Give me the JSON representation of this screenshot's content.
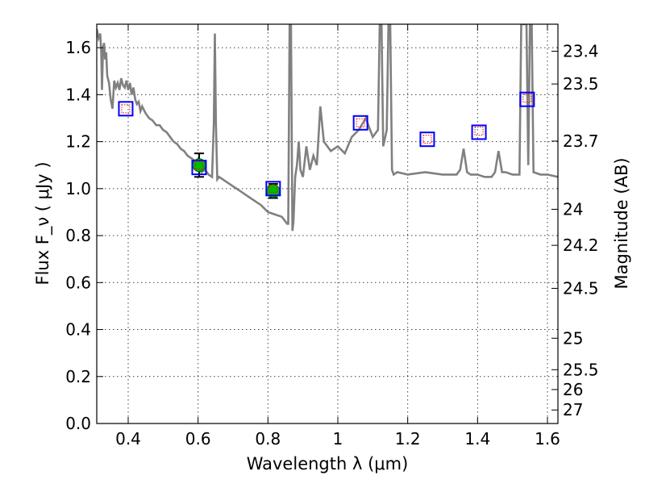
{
  "chart_data": {
    "type": "scatter",
    "xlabel": "Wavelength  λ (μm)",
    "ylabel": "Flux  F_ν  ( μJy )",
    "y2label": "Magnitude (AB)",
    "xlim": [
      0.31,
      1.63
    ],
    "ylim": [
      0.0,
      1.7
    ],
    "grid": true,
    "x_ticks": [
      {
        "value": 0.4,
        "label": "0.4"
      },
      {
        "value": 0.6,
        "label": "0.6"
      },
      {
        "value": 0.8,
        "label": "0.8"
      },
      {
        "value": 1.0,
        "label": "1"
      },
      {
        "value": 1.2,
        "label": "1.2"
      },
      {
        "value": 1.4,
        "label": "1.4"
      },
      {
        "value": 1.6,
        "label": "1.6"
      }
    ],
    "y_ticks": [
      {
        "value": 0.0,
        "label": "0.0"
      },
      {
        "value": 0.2,
        "label": "0.2"
      },
      {
        "value": 0.4,
        "label": "0.4"
      },
      {
        "value": 0.6,
        "label": "0.6"
      },
      {
        "value": 0.8,
        "label": "0.8"
      },
      {
        "value": 1.0,
        "label": "1.0"
      },
      {
        "value": 1.2,
        "label": "1.2"
      },
      {
        "value": 1.4,
        "label": "1.4"
      },
      {
        "value": 1.6,
        "label": "1.6"
      }
    ],
    "mag_ticks": [
      {
        "value": 23.4,
        "label": "23.4"
      },
      {
        "value": 23.5,
        "label": "23.5"
      },
      {
        "value": 23.7,
        "label": "23.7"
      },
      {
        "value": 24.0,
        "label": "24"
      },
      {
        "value": 24.2,
        "label": "24.2"
      },
      {
        "value": 24.5,
        "label": "24.5"
      },
      {
        "value": 25.0,
        "label": "25"
      },
      {
        "value": 25.5,
        "label": "25.5"
      },
      {
        "value": 26.0,
        "label": "26"
      },
      {
        "value": 27.0,
        "label": "27"
      }
    ],
    "model_spectrum": {
      "color": "#808080",
      "x": [
        0.31,
        0.315,
        0.32,
        0.323,
        0.325,
        0.328,
        0.331,
        0.334,
        0.337,
        0.34,
        0.345,
        0.35,
        0.355,
        0.36,
        0.365,
        0.37,
        0.375,
        0.38,
        0.385,
        0.39,
        0.395,
        0.4,
        0.405,
        0.41,
        0.415,
        0.42,
        0.425,
        0.43,
        0.435,
        0.44,
        0.45,
        0.46,
        0.47,
        0.48,
        0.49,
        0.5,
        0.51,
        0.52,
        0.53,
        0.54,
        0.55,
        0.56,
        0.57,
        0.58,
        0.59,
        0.6,
        0.61,
        0.62,
        0.63,
        0.64,
        0.645,
        0.648,
        0.651,
        0.655,
        0.66,
        0.68,
        0.7,
        0.72,
        0.74,
        0.76,
        0.78,
        0.8,
        0.82,
        0.84,
        0.85,
        0.855,
        0.858,
        0.862,
        0.866,
        0.87,
        0.873,
        0.878,
        0.883,
        0.888,
        0.893,
        0.9,
        0.91,
        0.92,
        0.93,
        0.94,
        0.95,
        0.96,
        0.98,
        1.0,
        1.02,
        1.04,
        1.06,
        1.08,
        1.1,
        1.115,
        1.12,
        1.125,
        1.13,
        1.14,
        1.145,
        1.15,
        1.155,
        1.16,
        1.17,
        1.2,
        1.25,
        1.3,
        1.34,
        1.35,
        1.36,
        1.37,
        1.38,
        1.4,
        1.42,
        1.44,
        1.45,
        1.46,
        1.47,
        1.48,
        1.5,
        1.52,
        1.525,
        1.53,
        1.54,
        1.545,
        1.55,
        1.555,
        1.56,
        1.58,
        1.6,
        1.63
      ],
      "y": [
        1.68,
        1.64,
        1.66,
        1.58,
        1.42,
        1.6,
        1.62,
        1.55,
        1.58,
        1.48,
        1.45,
        1.38,
        1.34,
        1.46,
        1.43,
        1.45,
        1.42,
        1.47,
        1.44,
        1.43,
        1.46,
        1.42,
        1.45,
        1.4,
        1.43,
        1.38,
        1.36,
        1.37,
        1.33,
        1.35,
        1.32,
        1.3,
        1.29,
        1.27,
        1.27,
        1.25,
        1.24,
        1.22,
        1.2,
        1.19,
        1.17,
        1.16,
        1.14,
        1.13,
        1.12,
        1.1,
        1.07,
        1.08,
        1.06,
        1.05,
        1.28,
        1.66,
        1.28,
        1.04,
        1.05,
        1.03,
        1.01,
        0.99,
        0.97,
        0.95,
        0.93,
        0.9,
        0.89,
        0.88,
        0.86,
        0.85,
        0.85,
        1.7,
        1.7,
        0.82,
        0.86,
        1.05,
        1.1,
        1.2,
        1.08,
        1.05,
        1.18,
        1.08,
        1.14,
        1.1,
        1.35,
        1.2,
        1.16,
        1.18,
        1.15,
        1.22,
        1.25,
        1.3,
        1.22,
        1.25,
        1.7,
        1.7,
        1.18,
        1.25,
        1.7,
        1.7,
        1.08,
        1.06,
        1.07,
        1.06,
        1.07,
        1.06,
        1.06,
        1.08,
        1.17,
        1.07,
        1.06,
        1.06,
        1.05,
        1.05,
        1.07,
        1.16,
        1.07,
        1.07,
        1.06,
        1.06,
        1.7,
        1.7,
        1.7,
        1.1,
        1.7,
        1.7,
        1.07,
        1.06,
        1.06,
        1.05
      ]
    },
    "series": [
      {
        "marker": "filled-circle",
        "color": "#00bb00",
        "points": [
          {
            "x": 0.603,
            "y": 1.1,
            "yerr": 0.05
          },
          {
            "x": 0.815,
            "y": 0.99,
            "yerr": 0.03
          }
        ]
      },
      {
        "marker": "open-square-blue",
        "color": "#0000ff",
        "points": [
          {
            "x": 0.393,
            "y": 1.34
          },
          {
            "x": 0.603,
            "y": 1.09
          },
          {
            "x": 0.815,
            "y": 1.0
          },
          {
            "x": 1.065,
            "y": 1.28
          },
          {
            "x": 1.256,
            "y": 1.21
          },
          {
            "x": 1.404,
            "y": 1.24
          },
          {
            "x": 1.542,
            "y": 1.38
          }
        ]
      },
      {
        "marker": "open-square-red",
        "color": "#ff0000",
        "points": [
          {
            "x": 0.393,
            "y": 1.34
          },
          {
            "x": 0.603,
            "y": 1.1
          },
          {
            "x": 0.815,
            "y": 1.0
          },
          {
            "x": 1.065,
            "y": 1.28
          },
          {
            "x": 1.256,
            "y": 1.21
          },
          {
            "x": 1.404,
            "y": 1.245
          },
          {
            "x": 1.542,
            "y": 1.385
          }
        ]
      }
    ]
  }
}
